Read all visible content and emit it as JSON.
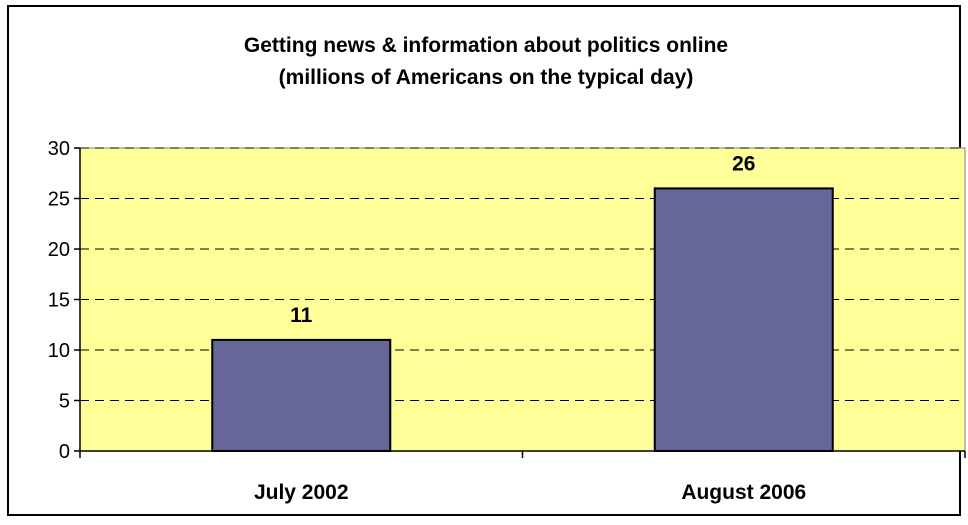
{
  "chart_data": {
    "type": "bar",
    "title_line1": "Getting news & information about politics online",
    "title_line2": "(millions of Americans on the typical day)",
    "categories": [
      "July 2002",
      "August 2006"
    ],
    "values": [
      11,
      26
    ],
    "data_labels": [
      "11",
      "26"
    ],
    "ylim": [
      0,
      30
    ],
    "yticks": [
      0,
      5,
      10,
      15,
      20,
      25,
      30
    ],
    "grid": true,
    "legend": "none",
    "colors": {
      "bar": "#666699",
      "bar_border": "#000000",
      "plot_background": "#FFFF99",
      "gridline": "#000000"
    }
  }
}
